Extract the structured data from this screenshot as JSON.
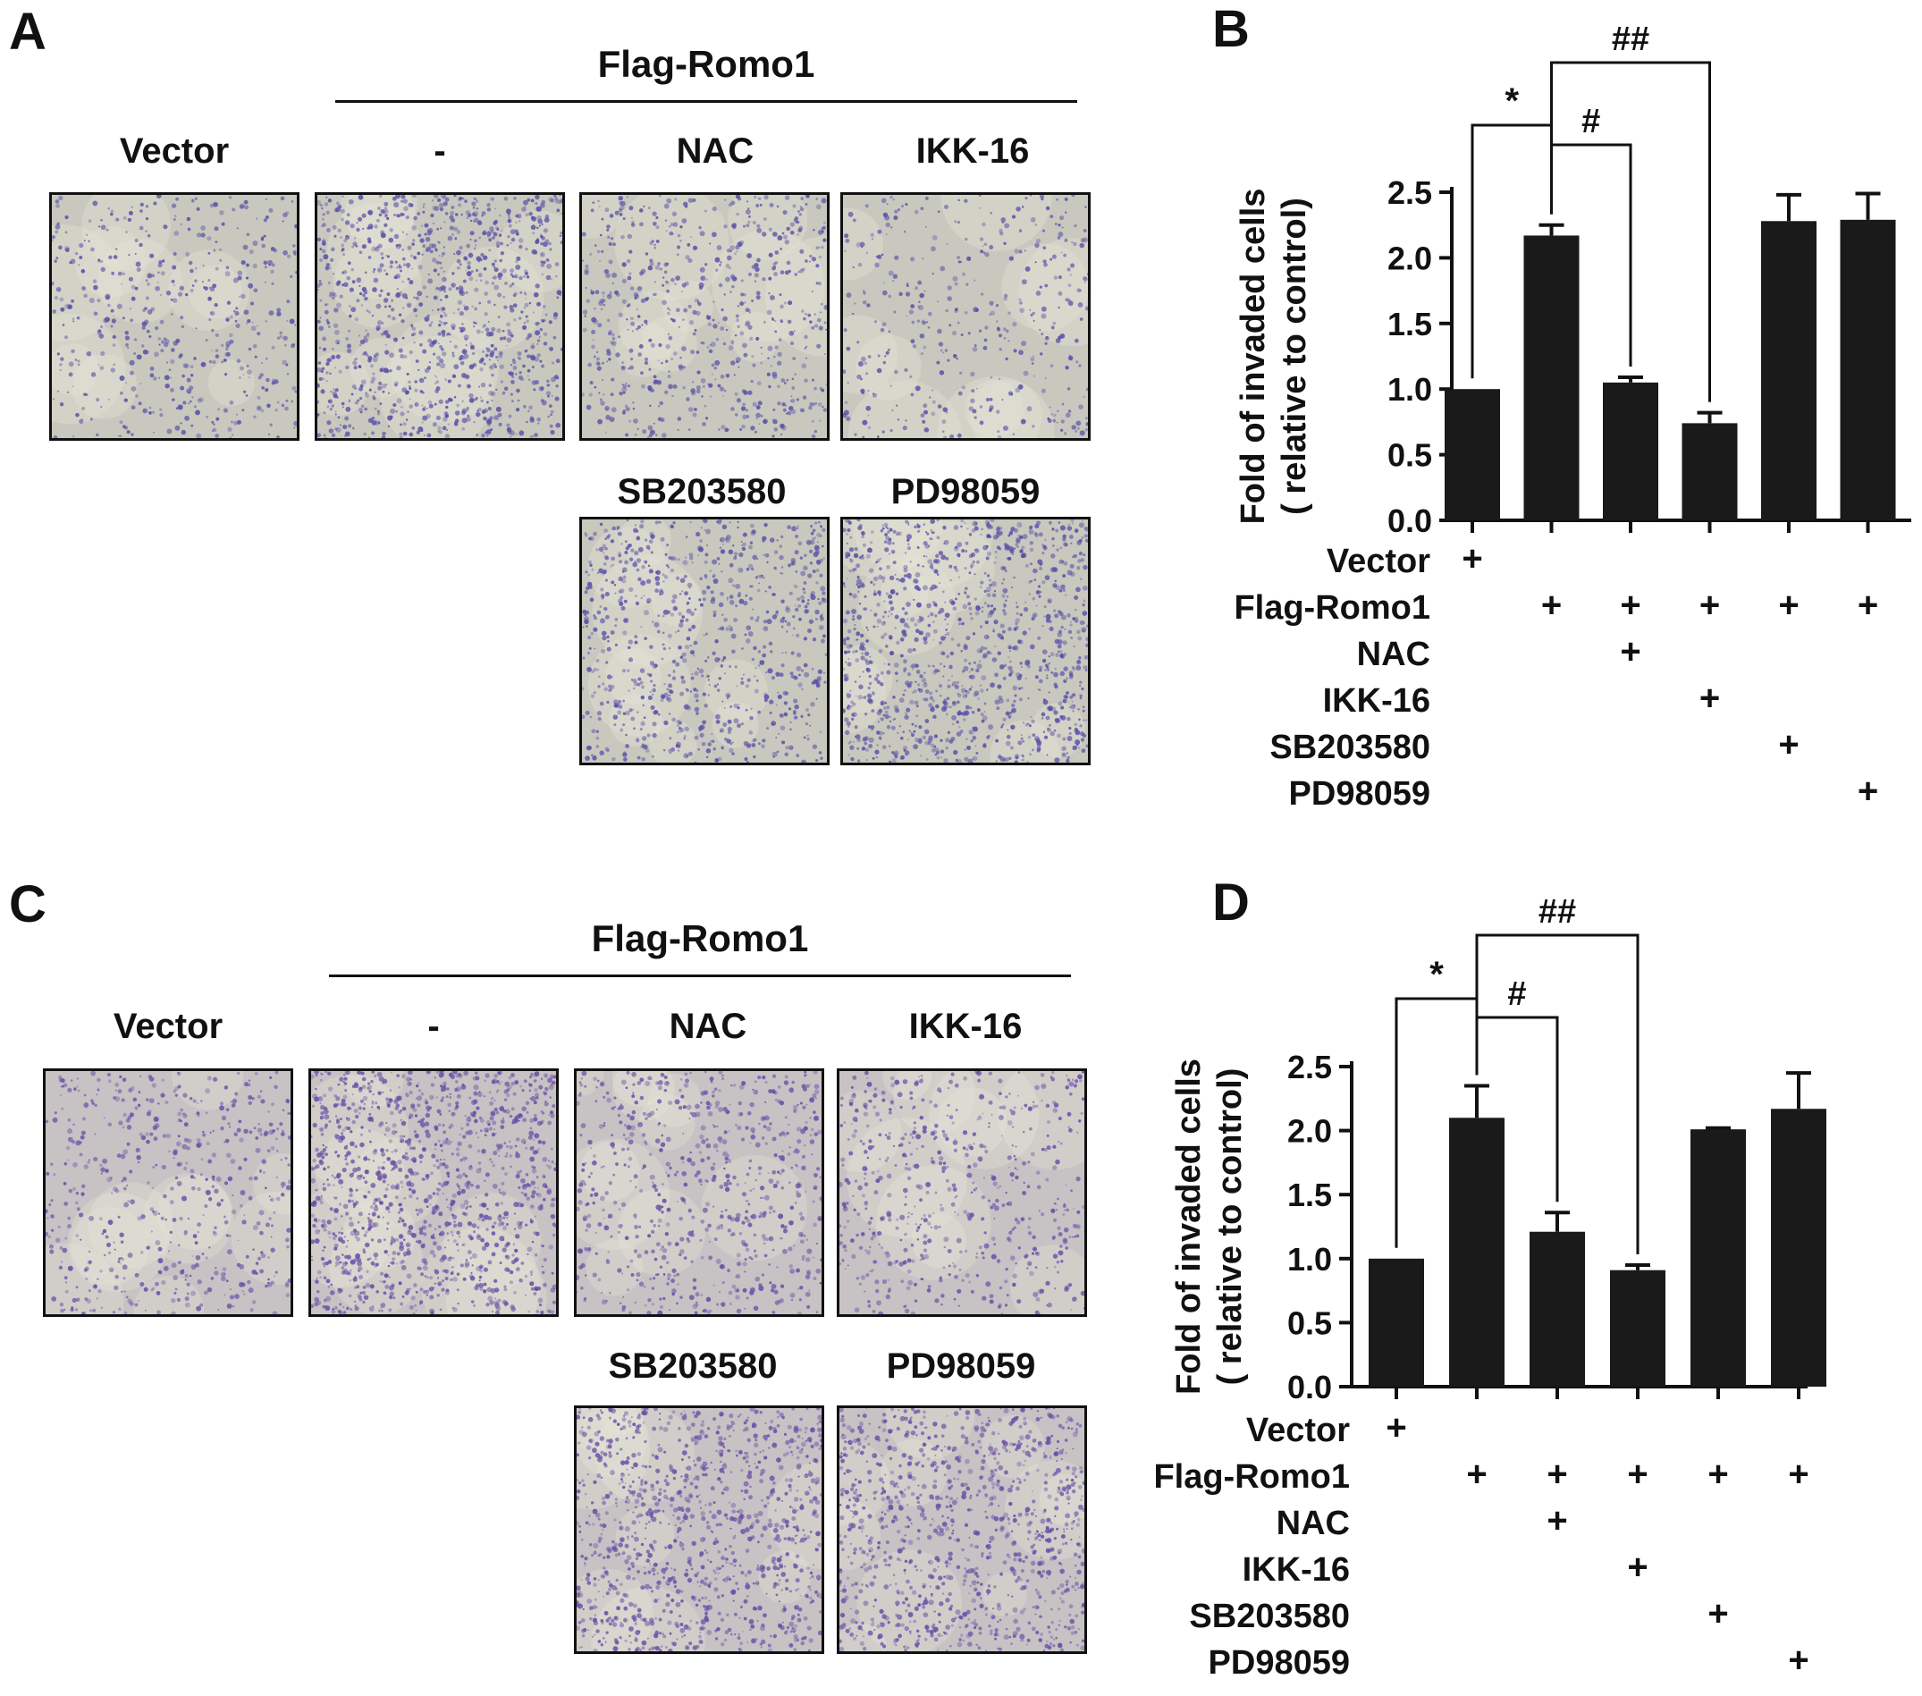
{
  "panels": {
    "A": {
      "letter": "A",
      "group_title": "Flag-Romo1",
      "row1_labels": [
        "Vector",
        "-",
        "NAC",
        "IKK-16"
      ],
      "row2_labels": [
        "SB203580",
        "PD98059"
      ]
    },
    "C": {
      "letter": "C",
      "group_title": "Flag-Romo1",
      "row1_labels": [
        "Vector",
        "-",
        "NAC",
        "IKK-16"
      ],
      "row2_labels": [
        "SB203580",
        "PD98059"
      ]
    }
  },
  "image_style": {
    "A": {
      "bg": "#c9c8be",
      "dot": "#5a50a8"
    },
    "C": {
      "bg": "#c7c2c4",
      "dot": "#6a4fa6"
    }
  },
  "chart_data": [
    {
      "letter": "B",
      "type": "bar",
      "ylabel": "Fold of invaded cells",
      "ylabel2": "( relative to control)",
      "ylim": [
        0,
        2.5
      ],
      "yticks": [
        0.0,
        0.5,
        1.0,
        1.5,
        2.0,
        2.5
      ],
      "ytick_labels": [
        "0.0",
        "0.5",
        "1.0",
        "1.5",
        "2.0",
        "2.5"
      ],
      "values": [
        1.0,
        2.17,
        1.05,
        0.74,
        2.28,
        2.29
      ],
      "errors": [
        0.0,
        0.08,
        0.04,
        0.08,
        0.2,
        0.2
      ],
      "bar_color": "#1a1a1a",
      "treatments": [
        {
          "label": "Vector",
          "marks": [
            "+",
            "",
            "",
            "",
            "",
            ""
          ]
        },
        {
          "label": "Flag-Romo1",
          "marks": [
            "",
            "+",
            "+",
            "+",
            "+",
            "+"
          ]
        },
        {
          "label": "NAC",
          "marks": [
            "",
            "",
            "+",
            "",
            "",
            ""
          ]
        },
        {
          "label": "IKK-16",
          "marks": [
            "",
            "",
            "",
            "+",
            "",
            ""
          ]
        },
        {
          "label": "SB203580",
          "marks": [
            "",
            "",
            "",
            "",
            "+",
            ""
          ]
        },
        {
          "label": "PD98059",
          "marks": [
            "",
            "",
            "",
            "",
            "",
            "+"
          ]
        }
      ],
      "annotations": [
        {
          "from": 0,
          "to": 1,
          "label": "*"
        },
        {
          "from": 1,
          "to": 2,
          "label": "#"
        },
        {
          "from": 1,
          "to": 3,
          "label": "##"
        }
      ]
    },
    {
      "letter": "D",
      "type": "bar",
      "ylabel": "Fold of invaded cells",
      "ylabel2": "( relative to control)",
      "ylim": [
        0,
        2.5
      ],
      "yticks": [
        0.0,
        0.5,
        1.0,
        1.5,
        2.0,
        2.5
      ],
      "ytick_labels": [
        "0.0",
        "0.5",
        "1.0",
        "1.5",
        "2.0",
        "2.5"
      ],
      "values": [
        1.0,
        2.1,
        1.21,
        0.91,
        2.01,
        2.17
      ],
      "errors": [
        0.0,
        0.25,
        0.15,
        0.04,
        0.01,
        0.28
      ],
      "bar_color": "#1a1a1a",
      "treatments": [
        {
          "label": "Vector",
          "marks": [
            "+",
            "",
            "",
            "",
            "",
            ""
          ]
        },
        {
          "label": "Flag-Romo1",
          "marks": [
            "",
            "+",
            "+",
            "+",
            "+",
            "+"
          ]
        },
        {
          "label": "NAC",
          "marks": [
            "",
            "",
            "+",
            "",
            "",
            ""
          ]
        },
        {
          "label": "IKK-16",
          "marks": [
            "",
            "",
            "",
            "+",
            "",
            ""
          ]
        },
        {
          "label": "SB203580",
          "marks": [
            "",
            "",
            "",
            "",
            "+",
            ""
          ]
        },
        {
          "label": "PD98059",
          "marks": [
            "",
            "",
            "",
            "",
            "",
            "+"
          ]
        }
      ],
      "annotations": [
        {
          "from": 0,
          "to": 1,
          "label": "*"
        },
        {
          "from": 1,
          "to": 2,
          "label": "#"
        },
        {
          "from": 1,
          "to": 3,
          "label": "##"
        }
      ]
    }
  ]
}
